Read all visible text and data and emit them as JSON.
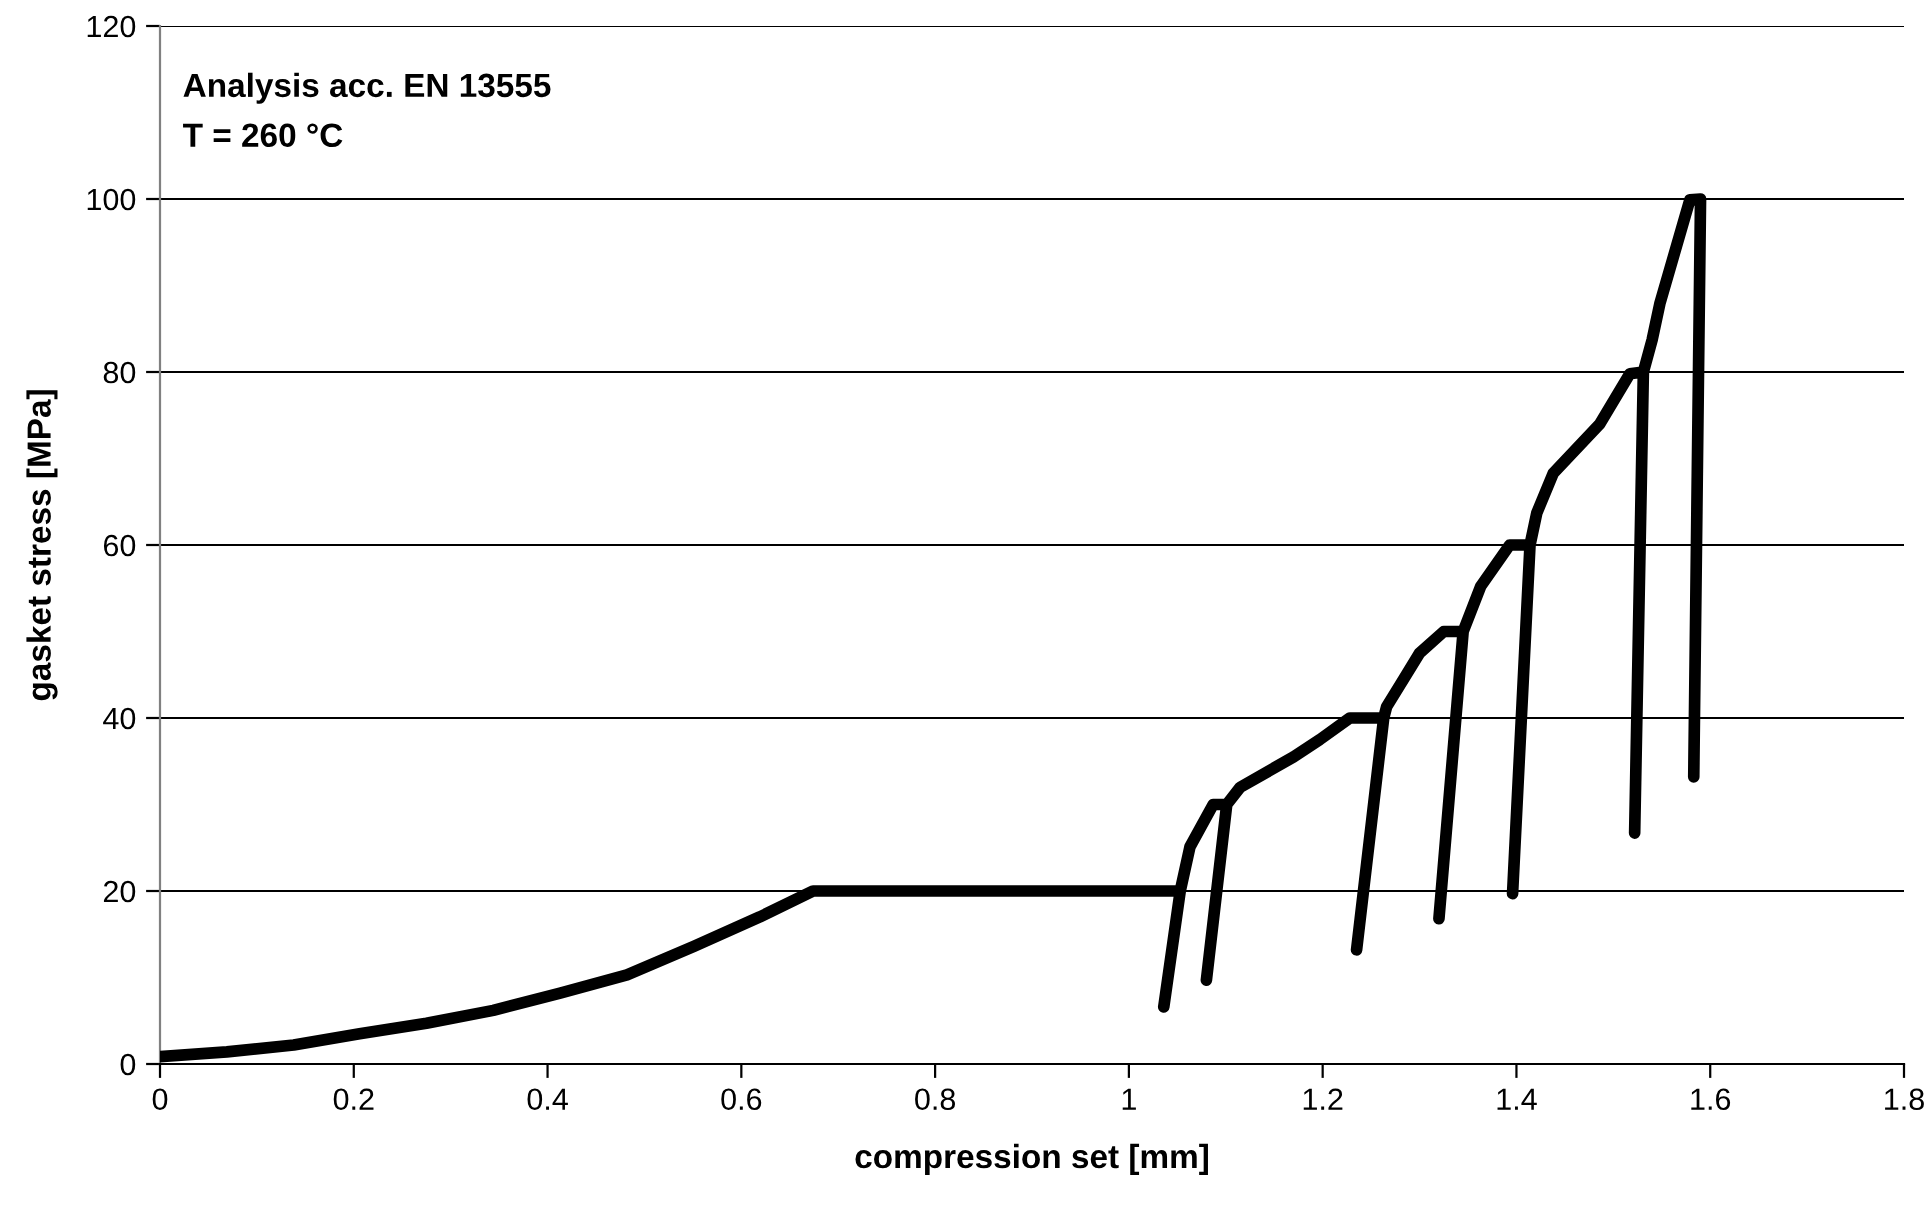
{
  "chart_data": {
    "type": "line",
    "xlabel": "compression set [mm]",
    "ylabel": "gasket stress [MPa]",
    "annotations": [
      "Analysis acc. EN 13555",
      "T = 260 °C"
    ],
    "series": [
      {
        "color": "#000000",
        "x": [
          0,
          0.069,
          0.138,
          0.206,
          0.275,
          0.344,
          0.413,
          0.482,
          0.551,
          0.619,
          0.674,
          1.053,
          1.036,
          1.053,
          1.063,
          1.087,
          1.101,
          1.08,
          1.101,
          1.115,
          1.17,
          1.197,
          1.228,
          1.263,
          1.235,
          1.263,
          1.266,
          1.283,
          1.3,
          1.325,
          1.345,
          1.32,
          1.345,
          1.363,
          1.393,
          1.414,
          1.396,
          1.414,
          1.421,
          1.438,
          1.486,
          1.517,
          1.531,
          1.522,
          1.531,
          1.54,
          1.548,
          1.579,
          1.59,
          1.583
        ],
        "values": [
          0.85,
          1.4,
          2.2,
          3.5,
          4.7,
          6.2,
          8.2,
          10.3,
          13.6,
          17,
          20,
          20,
          6.6,
          20,
          25.1,
          30,
          30,
          9.7,
          30,
          32,
          35.5,
          37.5,
          40,
          40,
          13.2,
          40,
          41.3,
          44.4,
          47.5,
          50,
          50,
          16.8,
          50,
          55.2,
          60,
          60,
          19.7,
          60,
          63.7,
          68.3,
          74,
          79.8,
          80,
          26.7,
          80,
          83.7,
          87.9,
          99.9,
          100,
          33.2
        ]
      }
    ],
    "xlim": [
      0,
      1.8
    ],
    "xticks": [
      0,
      0.2,
      0.4,
      0.6,
      0.8,
      1,
      1.2,
      1.4,
      1.6,
      1.8
    ],
    "ylim": [
      0,
      120
    ],
    "yticks": [
      0,
      20,
      40,
      60,
      80,
      100,
      120
    ],
    "grid": "y",
    "legend": false,
    "marker": "none",
    "line_style": "solid"
  }
}
